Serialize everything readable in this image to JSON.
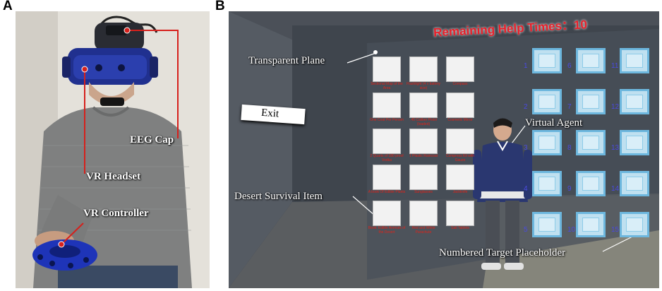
{
  "panels": {
    "a": {
      "label": "A"
    },
    "b": {
      "label": "B"
    }
  },
  "panel_a": {
    "labels": {
      "eeg_cap": "EEG Cap",
      "vr_headset": "VR Headset",
      "vr_controller": "VR Controller"
    }
  },
  "panel_b": {
    "hud": {
      "remaining_help_times": "Remaining Help Times：10"
    },
    "exit_label": "Exit",
    "labels": {
      "transparent_plane": "Transparent Plane",
      "virtual_agent": "Virtual Agent",
      "desert_survival_item": "Desert Survival Item",
      "numbered_target_placeholder": "Numbered Target Placeholder"
    },
    "item_captions": [
      "Sectional Map of the Area",
      "Flashlight (4 x battery size)",
      "Compass",
      "One Coat Per Person",
      ".45 Caliber Pistol (loaded)",
      "Cosmetic Mirror",
      "2 Quarts of 180 proof Vodka",
      "1 Plastic Raincoat",
      "Compress Kit with Gauze",
      "A book Of Edible Plants",
      "Sunglasses",
      "Jackknife",
      "Book: Edible Animals of the Desert",
      "Red and White Parachute",
      "Salt Tablets"
    ],
    "slot_numbers": [
      "1",
      "2",
      "3",
      "4",
      "5",
      "6",
      "7",
      "8",
      "9",
      "10",
      "11",
      "12",
      "13",
      "14",
      "15"
    ]
  },
  "colors": {
    "hud_red": "#e8202a",
    "annotation_red": "#d6201c",
    "slot_blue": "#6db7de",
    "slot_number_blue": "#4a4ae0"
  }
}
